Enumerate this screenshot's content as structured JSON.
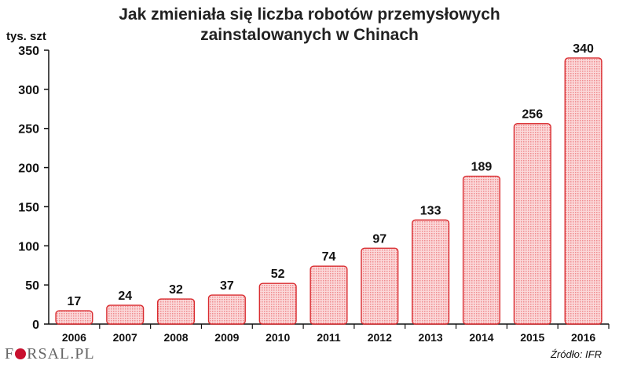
{
  "chart_data": {
    "type": "bar",
    "title_line1": "Jak zmieniała się liczba robotów przemysłowych",
    "title_line2": "zainstalowanych w Chinach",
    "ylabel": "tys. szt",
    "categories": [
      "2006",
      "2007",
      "2008",
      "2009",
      "2010",
      "2011",
      "2012",
      "2013",
      "2014",
      "2015",
      "2016"
    ],
    "values": [
      17,
      24,
      32,
      37,
      52,
      74,
      97,
      133,
      189,
      256,
      340
    ],
    "ylim": [
      0,
      350
    ],
    "yticks": [
      0,
      50,
      100,
      150,
      200,
      250,
      300,
      350
    ],
    "grid": false,
    "bar_fill": "#f7b7b9",
    "bar_stroke": "#d92b2f"
  },
  "source": "Źródło: IFR",
  "logo": {
    "part1": "F",
    "part2": "RSAL.PL"
  }
}
